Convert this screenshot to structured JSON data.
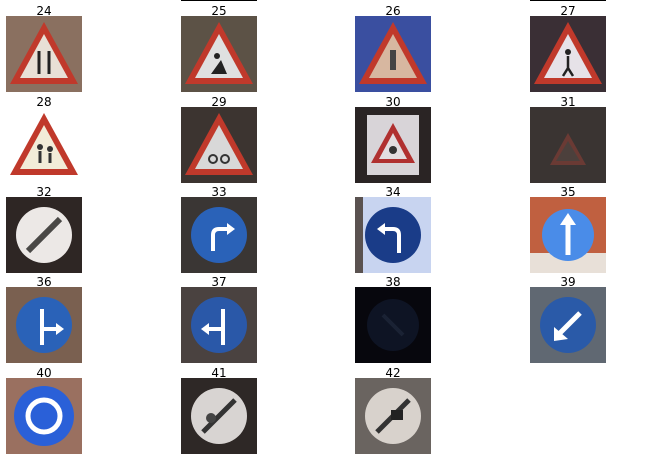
{
  "grid": {
    "cells": [
      {
        "label": "24",
        "sign": "road-narrows-sign"
      },
      {
        "label": "25",
        "sign": "road-work-sign"
      },
      {
        "label": "26",
        "sign": "traffic-signals-sign"
      },
      {
        "label": "27",
        "sign": "pedestrians-sign"
      },
      {
        "label": "28",
        "sign": "children-crossing-sign"
      },
      {
        "label": "29",
        "sign": "bicycles-crossing-sign"
      },
      {
        "label": "30",
        "sign": "ice-snow-sign"
      },
      {
        "label": "31",
        "sign": "wild-animals-sign"
      },
      {
        "label": "32",
        "sign": "end-of-limits-sign"
      },
      {
        "label": "33",
        "sign": "turn-right-ahead-sign"
      },
      {
        "label": "34",
        "sign": "turn-left-ahead-sign"
      },
      {
        "label": "35",
        "sign": "ahead-only-sign"
      },
      {
        "label": "36",
        "sign": "straight-or-right-sign"
      },
      {
        "label": "37",
        "sign": "straight-or-left-sign"
      },
      {
        "label": "38",
        "sign": "keep-right-sign"
      },
      {
        "label": "39",
        "sign": "keep-left-sign"
      },
      {
        "label": "40",
        "sign": "roundabout-sign"
      },
      {
        "label": "41",
        "sign": "end-of-no-passing-sign"
      },
      {
        "label": "42",
        "sign": "end-of-no-passing-trucks-sign"
      }
    ]
  }
}
